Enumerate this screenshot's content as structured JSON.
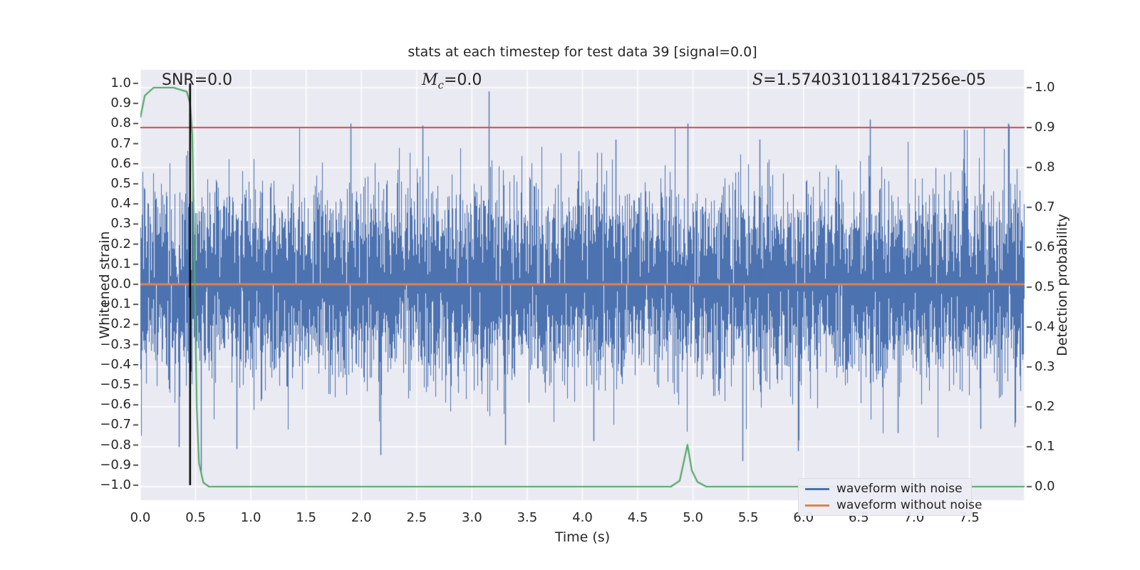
{
  "figure": {
    "title": "stats at each timestep for test data 39 [signal=0.0]"
  },
  "annotations": {
    "snr": "SNR=0.0",
    "mc_m": "M",
    "mc_sub": "c",
    "mc_eq": "=0.0",
    "s_var": "S",
    "s_val": "=1.5740310118417256e-05"
  },
  "axes": {
    "x": {
      "label": "Time (s)",
      "ticks": [
        "0.0",
        "0.5",
        "1.0",
        "1.5",
        "2.0",
        "2.5",
        "3.0",
        "3.5",
        "4.0",
        "4.5",
        "5.0",
        "5.5",
        "6.0",
        "6.5",
        "7.0",
        "7.5"
      ]
    },
    "left": {
      "label": "Whitened strain",
      "ticks": [
        "1.0",
        "0.9",
        "0.8",
        "0.7",
        "0.6",
        "0.5",
        "0.4",
        "0.3",
        "0.2",
        "0.1",
        "0.0",
        "−0.1",
        "−0.2",
        "−0.3",
        "−0.4",
        "−0.5",
        "−0.6",
        "−0.7",
        "−0.8",
        "−0.9",
        "−1.0"
      ]
    },
    "right": {
      "label": "Detection probability",
      "ticks": [
        "1.0",
        "0.9",
        "0.8",
        "0.7",
        "0.6",
        "0.5",
        "0.4",
        "0.3",
        "0.2",
        "0.1",
        "0.0"
      ]
    }
  },
  "legend": {
    "items": [
      {
        "label": "waveform with noise",
        "color": "#4c72b0"
      },
      {
        "label": "waveform without noise",
        "color": "#dd8452"
      }
    ]
  },
  "colors": {
    "axes_bg": "#eaeaf2",
    "grid": "#ffffff",
    "tick": "#262626",
    "blue": "#4c72b0",
    "orange": "#dd8452",
    "green": "#55a868",
    "red": "#c44e52",
    "black": "#000000"
  },
  "chart_data": {
    "type": "line",
    "title": "stats at each timestep for test data 39 [signal=0.0]",
    "xlabel": "Time (s)",
    "ylabel_left": "Whitened strain",
    "ylabel_right": "Detection probability",
    "xlim": [
      0,
      8
    ],
    "ylim_left": [
      -1.07,
      1.07
    ],
    "ylim_right": [
      -0.035,
      1.045
    ],
    "x_tick_step": 0.5,
    "grid": true,
    "legend_position": "lower right",
    "series": [
      {
        "name": "waveform with noise",
        "axis": "left",
        "type": "noise",
        "color": "#4c72b0",
        "sigma": 0.23,
        "samples_per_column": 6,
        "seed": 42,
        "extremes": [
          [
            0.35,
            -0.81
          ],
          [
            0.55,
            -0.93
          ],
          [
            0.87,
            -0.82
          ],
          [
            1.9,
            0.8
          ],
          [
            2.17,
            -0.85
          ],
          [
            2.55,
            0.79
          ],
          [
            3.15,
            0.96
          ],
          [
            3.3,
            -0.8
          ],
          [
            4.1,
            -0.78
          ],
          [
            4.3,
            0.72
          ],
          [
            4.95,
            0.8
          ],
          [
            5.45,
            -0.88
          ],
          [
            5.6,
            0.72
          ],
          [
            5.95,
            -0.83
          ],
          [
            6.6,
            0.82
          ],
          [
            6.85,
            -0.74
          ],
          [
            7.45,
            0.77
          ],
          [
            7.6,
            -0.72
          ],
          [
            7.85,
            0.8
          ]
        ]
      },
      {
        "name": "waveform without noise",
        "axis": "left",
        "type": "hline",
        "color": "#dd8452",
        "value": 0.0
      },
      {
        "name": "detection probability",
        "axis": "right",
        "type": "line",
        "color": "#55a868",
        "points": [
          [
            0,
            0.925
          ],
          [
            0.04,
            0.98
          ],
          [
            0.12,
            1.0
          ],
          [
            0.3,
            1.0
          ],
          [
            0.42,
            0.99
          ],
          [
            0.45,
            0.96
          ],
          [
            0.47,
            0.88
          ],
          [
            0.49,
            0.55
          ],
          [
            0.51,
            0.2
          ],
          [
            0.53,
            0.06
          ],
          [
            0.57,
            0.01
          ],
          [
            0.62,
            0.0
          ],
          [
            4.8,
            0.0
          ],
          [
            4.88,
            0.015
          ],
          [
            4.95,
            0.105
          ],
          [
            4.99,
            0.04
          ],
          [
            5.04,
            0.012
          ],
          [
            5.12,
            0.0
          ],
          [
            8.0,
            0.0
          ]
        ]
      },
      {
        "name": "detection threshold",
        "axis": "right",
        "type": "hline",
        "color": "#c44e52",
        "value": 0.9
      },
      {
        "name": "event time marker",
        "axis": "left",
        "type": "vline",
        "color": "#000000",
        "x": 0.45,
        "from": -1.0,
        "to": 1.0
      }
    ]
  }
}
